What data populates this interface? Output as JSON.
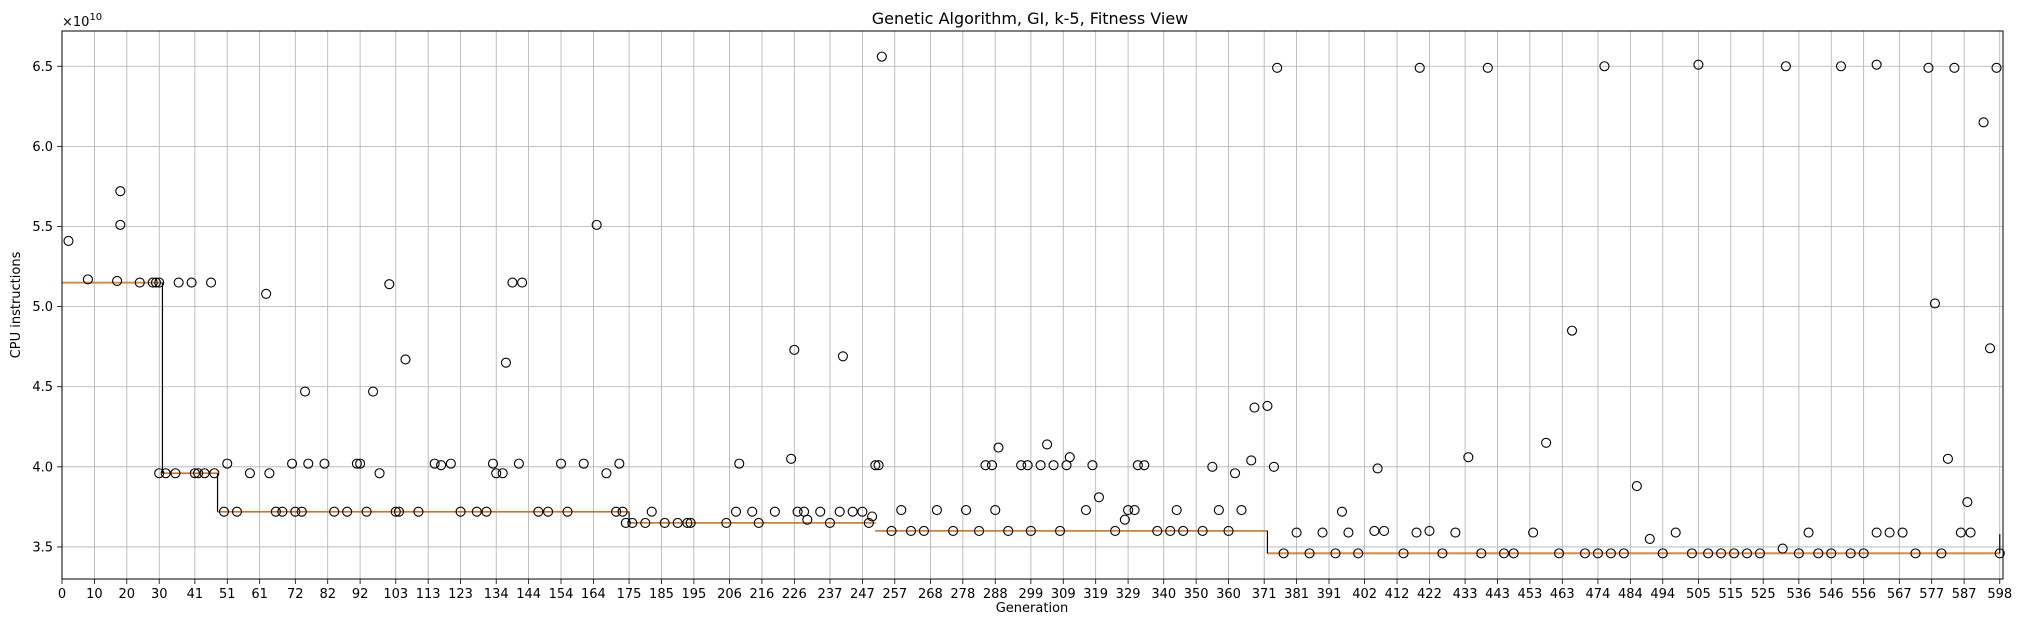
{
  "chart_data": {
    "type": "box",
    "title": "Genetic Algorithm, GI, k-5, Fitness View",
    "xlabel": "Generation",
    "ylabel": "CPU instructions",
    "y_multiplier_label": "×10",
    "y_multiplier_exp": "10",
    "xlim": [
      0,
      599
    ],
    "ylim": [
      3.3,
      6.72
    ],
    "y_ticks": [
      3.5,
      4.0,
      4.5,
      5.0,
      5.5,
      6.0,
      6.5
    ],
    "y_tick_labels": [
      "3.5",
      "4.0",
      "4.5",
      "5.0",
      "5.5",
      "6.0",
      "6.5"
    ],
    "x_tick_labels": [
      "0",
      "10",
      "20",
      "30",
      "41",
      "51",
      "61",
      "72",
      "82",
      "92",
      "103",
      "113",
      "123",
      "134",
      "144",
      "154",
      "164",
      "175",
      "185",
      "195",
      "206",
      "216",
      "226",
      "237",
      "247",
      "257",
      "268",
      "278",
      "288",
      "299",
      "309",
      "319",
      "329",
      "340",
      "350",
      "360",
      "371",
      "381",
      "391",
      "402",
      "412",
      "422",
      "433",
      "443",
      "453",
      "463",
      "474",
      "484",
      "494",
      "505",
      "515",
      "525",
      "536",
      "546",
      "556",
      "567",
      "577",
      "587",
      "598"
    ],
    "x_ticks": [
      0,
      10,
      20,
      30,
      41,
      51,
      61,
      72,
      82,
      92,
      103,
      113,
      123,
      134,
      144,
      154,
      164,
      175,
      185,
      195,
      206,
      216,
      226,
      237,
      247,
      257,
      268,
      278,
      288,
      299,
      309,
      319,
      329,
      340,
      350,
      360,
      371,
      381,
      391,
      402,
      412,
      422,
      433,
      443,
      453,
      463,
      474,
      484,
      494,
      505,
      515,
      525,
      536,
      546,
      556,
      567,
      577,
      587,
      598
    ],
    "grid": true,
    "median_color": "#ff7f0e",
    "median_steps": [
      {
        "from": 0,
        "to": 31,
        "value": 5.15
      },
      {
        "from": 31,
        "to": 48,
        "value": 3.96
      },
      {
        "from": 48,
        "to": 175,
        "value": 3.72
      },
      {
        "from": 175,
        "to": 251,
        "value": 3.65
      },
      {
        "from": 251,
        "to": 372,
        "value": 3.6
      },
      {
        "from": 372,
        "to": 598,
        "value": 3.46
      }
    ],
    "whisker_jumps": [
      {
        "x": 31,
        "low": 3.96,
        "high": 5.15
      },
      {
        "x": 48,
        "low": 3.72,
        "high": 3.96
      },
      {
        "x": 175,
        "low": 3.65,
        "high": 3.72
      },
      {
        "x": 372,
        "low": 3.46,
        "high": 3.6
      },
      {
        "x": 598,
        "low": 3.46,
        "high": 3.58
      }
    ],
    "outliers": [
      [
        2,
        5.41
      ],
      [
        8,
        5.17
      ],
      [
        17,
        5.16
      ],
      [
        18,
        5.72
      ],
      [
        18,
        5.51
      ],
      [
        24,
        5.15
      ],
      [
        28,
        5.15
      ],
      [
        29,
        5.15
      ],
      [
        30,
        5.15
      ],
      [
        30,
        3.96
      ],
      [
        32,
        3.96
      ],
      [
        35,
        3.96
      ],
      [
        36,
        5.15
      ],
      [
        40,
        5.15
      ],
      [
        41,
        3.96
      ],
      [
        42,
        3.96
      ],
      [
        44,
        3.96
      ],
      [
        46,
        5.15
      ],
      [
        47,
        3.96
      ],
      [
        50,
        3.72
      ],
      [
        51,
        4.02
      ],
      [
        54,
        3.72
      ],
      [
        58,
        3.96
      ],
      [
        63,
        5.08
      ],
      [
        64,
        3.96
      ],
      [
        66,
        3.72
      ],
      [
        68,
        3.72
      ],
      [
        71,
        4.02
      ],
      [
        72,
        3.72
      ],
      [
        74,
        3.72
      ],
      [
        75,
        4.47
      ],
      [
        76,
        4.02
      ],
      [
        81,
        4.02
      ],
      [
        84,
        3.72
      ],
      [
        88,
        3.72
      ],
      [
        91,
        4.02
      ],
      [
        92,
        4.02
      ],
      [
        94,
        3.72
      ],
      [
        96,
        4.47
      ],
      [
        98,
        3.96
      ],
      [
        101,
        5.14
      ],
      [
        103,
        3.72
      ],
      [
        104,
        3.72
      ],
      [
        106,
        4.67
      ],
      [
        110,
        3.72
      ],
      [
        115,
        4.02
      ],
      [
        117,
        4.01
      ],
      [
        120,
        4.02
      ],
      [
        123,
        3.72
      ],
      [
        128,
        3.72
      ],
      [
        131,
        3.72
      ],
      [
        133,
        4.02
      ],
      [
        134,
        3.96
      ],
      [
        136,
        3.96
      ],
      [
        137,
        4.65
      ],
      [
        139,
        5.15
      ],
      [
        141,
        4.02
      ],
      [
        142,
        5.15
      ],
      [
        147,
        3.72
      ],
      [
        150,
        3.72
      ],
      [
        154,
        4.02
      ],
      [
        156,
        3.72
      ],
      [
        161,
        4.02
      ],
      [
        165,
        5.51
      ],
      [
        168,
        3.96
      ],
      [
        171,
        3.72
      ],
      [
        172,
        4.02
      ],
      [
        173,
        3.72
      ],
      [
        174,
        3.65
      ],
      [
        176,
        3.65
      ],
      [
        180,
        3.65
      ],
      [
        182,
        3.72
      ],
      [
        186,
        3.65
      ],
      [
        190,
        3.65
      ],
      [
        193,
        3.65
      ],
      [
        194,
        3.65
      ],
      [
        205,
        3.65
      ],
      [
        208,
        3.72
      ],
      [
        209,
        4.02
      ],
      [
        213,
        3.72
      ],
      [
        215,
        3.65
      ],
      [
        220,
        3.72
      ],
      [
        225,
        4.05
      ],
      [
        226,
        4.73
      ],
      [
        227,
        3.72
      ],
      [
        229,
        3.72
      ],
      [
        230,
        3.67
      ],
      [
        234,
        3.72
      ],
      [
        237,
        3.65
      ],
      [
        240,
        3.72
      ],
      [
        241,
        4.69
      ],
      [
        244,
        3.72
      ],
      [
        247,
        3.72
      ],
      [
        249,
        3.65
      ],
      [
        250,
        3.69
      ],
      [
        251,
        4.01
      ],
      [
        252,
        4.01
      ],
      [
        253,
        6.56
      ],
      [
        256,
        3.6
      ],
      [
        259,
        3.73
      ],
      [
        262,
        3.6
      ],
      [
        266,
        3.6
      ],
      [
        270,
        3.73
      ],
      [
        275,
        3.6
      ],
      [
        279,
        3.73
      ],
      [
        283,
        3.6
      ],
      [
        285,
        4.01
      ],
      [
        287,
        4.01
      ],
      [
        288,
        3.73
      ],
      [
        289,
        4.12
      ],
      [
        292,
        3.6
      ],
      [
        296,
        4.01
      ],
      [
        298,
        4.01
      ],
      [
        299,
        3.6
      ],
      [
        302,
        4.01
      ],
      [
        304,
        4.14
      ],
      [
        306,
        4.01
      ],
      [
        308,
        3.6
      ],
      [
        310,
        4.01
      ],
      [
        311,
        4.06
      ],
      [
        316,
        3.73
      ],
      [
        318,
        4.01
      ],
      [
        320,
        3.81
      ],
      [
        325,
        3.6
      ],
      [
        328,
        3.67
      ],
      [
        329,
        3.73
      ],
      [
        331,
        3.73
      ],
      [
        332,
        4.01
      ],
      [
        334,
        4.01
      ],
      [
        338,
        3.6
      ],
      [
        342,
        3.6
      ],
      [
        344,
        3.73
      ],
      [
        346,
        3.6
      ],
      [
        352,
        3.6
      ],
      [
        355,
        4.0
      ],
      [
        357,
        3.73
      ],
      [
        360,
        3.6
      ],
      [
        362,
        3.96
      ],
      [
        364,
        3.73
      ],
      [
        367,
        4.04
      ],
      [
        368,
        4.37
      ],
      [
        372,
        4.38
      ],
      [
        374,
        4.0
      ],
      [
        375,
        6.49
      ],
      [
        377,
        3.46
      ],
      [
        381,
        3.59
      ],
      [
        385,
        3.46
      ],
      [
        389,
        3.59
      ],
      [
        393,
        3.46
      ],
      [
        395,
        3.72
      ],
      [
        397,
        3.59
      ],
      [
        400,
        3.46
      ],
      [
        405,
        3.6
      ],
      [
        406,
        3.99
      ],
      [
        408,
        3.6
      ],
      [
        414,
        3.46
      ],
      [
        418,
        3.59
      ],
      [
        419,
        6.49
      ],
      [
        422,
        3.6
      ],
      [
        426,
        3.46
      ],
      [
        430,
        3.59
      ],
      [
        434,
        4.06
      ],
      [
        438,
        3.46
      ],
      [
        440,
        6.49
      ],
      [
        445,
        3.46
      ],
      [
        448,
        3.46
      ],
      [
        454,
        3.59
      ],
      [
        458,
        4.15
      ],
      [
        462,
        3.46
      ],
      [
        466,
        4.85
      ],
      [
        470,
        3.46
      ],
      [
        474,
        3.46
      ],
      [
        476,
        6.5
      ],
      [
        478,
        3.46
      ],
      [
        482,
        3.46
      ],
      [
        486,
        3.88
      ],
      [
        490,
        3.55
      ],
      [
        494,
        3.46
      ],
      [
        498,
        3.59
      ],
      [
        503,
        3.46
      ],
      [
        505,
        6.51
      ],
      [
        508,
        3.46
      ],
      [
        512,
        3.46
      ],
      [
        516,
        3.46
      ],
      [
        520,
        3.46
      ],
      [
        524,
        3.46
      ],
      [
        531,
        3.49
      ],
      [
        532,
        6.5
      ],
      [
        536,
        3.46
      ],
      [
        539,
        3.59
      ],
      [
        542,
        3.46
      ],
      [
        546,
        3.46
      ],
      [
        549,
        6.5
      ],
      [
        552,
        3.46
      ],
      [
        556,
        3.46
      ],
      [
        560,
        3.59
      ],
      [
        560,
        6.51
      ],
      [
        564,
        3.59
      ],
      [
        568,
        3.59
      ],
      [
        572,
        3.46
      ],
      [
        576,
        6.49
      ],
      [
        578,
        5.02
      ],
      [
        580,
        3.46
      ],
      [
        582,
        4.05
      ],
      [
        584,
        6.49
      ],
      [
        586,
        3.59
      ],
      [
        588,
        3.78
      ],
      [
        589,
        3.59
      ],
      [
        593,
        6.15
      ],
      [
        595,
        4.74
      ],
      [
        597,
        6.49
      ],
      [
        598,
        3.46
      ]
    ]
  }
}
